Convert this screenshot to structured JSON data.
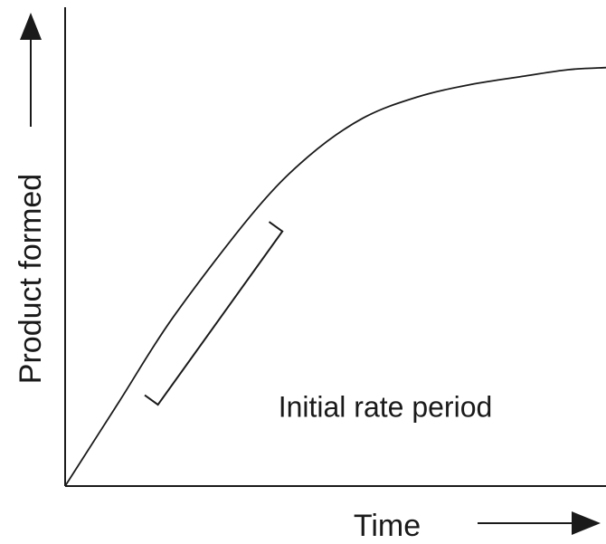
{
  "chart_data": {
    "type": "line",
    "title": "",
    "xlabel": "Time",
    "ylabel": "Product formed",
    "xlim": [
      0,
      1
    ],
    "ylim": [
      0,
      1
    ],
    "grid": false,
    "tick_labels": false,
    "series": [
      {
        "x": [
          0,
          0.1,
          0.2,
          0.35,
          0.45,
          0.55,
          0.65,
          0.75,
          0.85,
          0.93,
          1.0
        ],
        "y": [
          0,
          0.2,
          0.4,
          0.65,
          0.78,
          0.87,
          0.92,
          0.95,
          0.97,
          0.985,
          0.99
        ]
      }
    ],
    "annotations": [
      {
        "text": "Initial rate period",
        "x_range": [
          0.12,
          0.35
        ]
      }
    ],
    "colors": {
      "curve": "#1a1a1a",
      "axes": "#1a1a1a"
    }
  }
}
